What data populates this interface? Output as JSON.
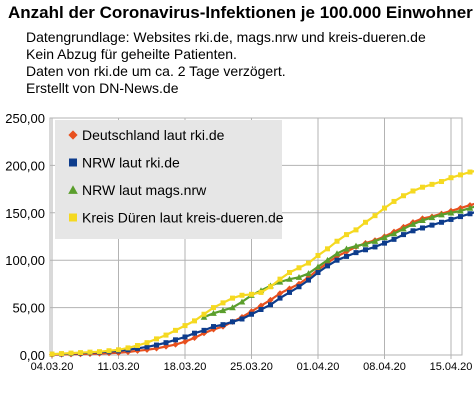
{
  "chart_data": {
    "type": "line",
    "title": "Anzahl der Coronavirus-Infektionen je 100.000 Einwohner",
    "subtitle_lines": [
      "Datengrundlage: Websites rki.de, mags.nrw und kreis-dueren.de",
      "Kein Abzug für geheilte Patienten.",
      "Daten von rki.de um ca. 2 Tage verzögert.",
      "Erstellt von DN-News.de"
    ],
    "x_tick_labels": [
      "04.03.20",
      "11.03.20",
      "18.03.20",
      "25.03.20",
      "01.04.20",
      "08.04.20",
      "15.04.20"
    ],
    "y_tick_labels": [
      "0,00",
      "50,00",
      "100,00",
      "150,00",
      "200,00",
      "250,00"
    ],
    "x_start": "2020-03-04",
    "x_end": "2020-04-20",
    "ylim": [
      0,
      250
    ],
    "grid": true,
    "legend_position": "top-left",
    "series": [
      {
        "name": "Deutschland laut rki.de",
        "color": "#e8501e",
        "marker": "diamond",
        "x": [
          "2020-03-04",
          "2020-03-05",
          "2020-03-06",
          "2020-03-07",
          "2020-03-08",
          "2020-03-09",
          "2020-03-10",
          "2020-03-11",
          "2020-03-12",
          "2020-03-13",
          "2020-03-14",
          "2020-03-15",
          "2020-03-16",
          "2020-03-17",
          "2020-03-18",
          "2020-03-19",
          "2020-03-20",
          "2020-03-21",
          "2020-03-22",
          "2020-03-23",
          "2020-03-24",
          "2020-03-25",
          "2020-03-26",
          "2020-03-27",
          "2020-03-28",
          "2020-03-29",
          "2020-03-30",
          "2020-03-31",
          "2020-04-01",
          "2020-04-02",
          "2020-04-03",
          "2020-04-04",
          "2020-04-05",
          "2020-04-06",
          "2020-04-07",
          "2020-04-08",
          "2020-04-09",
          "2020-04-10",
          "2020-04-11",
          "2020-04-12",
          "2020-04-13",
          "2020-04-14",
          "2020-04-15",
          "2020-04-16",
          "2020-04-17",
          "2020-04-18",
          "2020-04-19",
          "2020-04-20"
        ],
        "values": [
          0.3,
          0.5,
          0.7,
          0.9,
          1.2,
          1.5,
          1.9,
          2.3,
          3.2,
          4.4,
          5.5,
          7.0,
          9.0,
          11.0,
          14.0,
          18.0,
          23.0,
          27.0,
          30.0,
          35.0,
          40.0,
          46.0,
          52.0,
          58.0,
          65.0,
          70.0,
          75.0,
          82.0,
          90.0,
          97.0,
          104.0,
          109.0,
          114.0,
          118.0,
          121.0,
          125.0,
          130.0,
          135.0,
          140.0,
          144.0,
          146.0,
          149.0,
          152.0,
          155.0,
          158.0,
          161.0,
          165.0,
          168.0
        ]
      },
      {
        "name": "NRW laut rki.de",
        "color": "#0d3c8c",
        "marker": "square",
        "x": [
          "2020-03-04",
          "2020-03-05",
          "2020-03-06",
          "2020-03-07",
          "2020-03-08",
          "2020-03-09",
          "2020-03-10",
          "2020-03-11",
          "2020-03-12",
          "2020-03-13",
          "2020-03-14",
          "2020-03-15",
          "2020-03-16",
          "2020-03-17",
          "2020-03-18",
          "2020-03-19",
          "2020-03-20",
          "2020-03-21",
          "2020-03-22",
          "2020-03-23",
          "2020-03-24",
          "2020-03-25",
          "2020-03-26",
          "2020-03-27",
          "2020-03-28",
          "2020-03-29",
          "2020-03-30",
          "2020-03-31",
          "2020-04-01",
          "2020-04-02",
          "2020-04-03",
          "2020-04-04",
          "2020-04-05",
          "2020-04-06",
          "2020-04-07",
          "2020-04-08",
          "2020-04-09",
          "2020-04-10",
          "2020-04-11",
          "2020-04-12",
          "2020-04-13",
          "2020-04-14",
          "2020-04-15",
          "2020-04-16",
          "2020-04-17",
          "2020-04-18",
          "2020-04-19",
          "2020-04-20"
        ],
        "values": [
          0.8,
          1.1,
          1.5,
          1.9,
          2.4,
          2.9,
          3.5,
          4.3,
          5.5,
          7.0,
          8.5,
          10.5,
          13.0,
          16.0,
          19.0,
          23.0,
          26.0,
          30.0,
          32.0,
          35.0,
          38.0,
          43.0,
          48.0,
          53.0,
          60.0,
          66.0,
          72.0,
          79.0,
          87.0,
          94.0,
          100.0,
          104.0,
          108.0,
          111.0,
          114.0,
          118.0,
          122.0,
          127.0,
          131.0,
          134.0,
          137.0,
          140.0,
          143.0,
          146.0,
          149.0,
          152.0,
          155.0,
          158.0
        ]
      },
      {
        "name": "NRW laut mags.nrw",
        "color": "#5a9e2c",
        "marker": "triangle",
        "x": [
          "2020-03-20",
          "2020-03-21",
          "2020-03-22",
          "2020-03-23",
          "2020-03-24",
          "2020-03-25",
          "2020-03-26",
          "2020-03-27",
          "2020-03-28",
          "2020-03-29",
          "2020-03-30",
          "2020-03-31",
          "2020-04-01",
          "2020-04-02",
          "2020-04-03",
          "2020-04-04",
          "2020-04-05",
          "2020-04-06",
          "2020-04-07",
          "2020-04-08",
          "2020-04-09",
          "2020-04-10",
          "2020-04-11",
          "2020-04-12",
          "2020-04-13",
          "2020-04-14",
          "2020-04-15",
          "2020-04-16",
          "2020-04-17",
          "2020-04-18",
          "2020-04-19",
          "2020-04-20"
        ],
        "values": [
          40.0,
          44.0,
          47.0,
          50.0,
          56.0,
          63.0,
          68.0,
          73.0,
          77.0,
          80.0,
          82.0,
          86.0,
          93.0,
          100.0,
          107.0,
          112.0,
          115.0,
          117.0,
          120.0,
          124.0,
          128.0,
          133.0,
          138.0,
          142.0,
          145.0,
          148.0,
          150.0,
          152.0,
          155.0,
          158.0,
          161.0,
          163.0
        ]
      },
      {
        "name": "Kreis Düren laut kreis-dueren.de",
        "color": "#f5d921",
        "marker": "square",
        "x": [
          "2020-03-04",
          "2020-03-05",
          "2020-03-06",
          "2020-03-07",
          "2020-03-08",
          "2020-03-09",
          "2020-03-10",
          "2020-03-11",
          "2020-03-12",
          "2020-03-13",
          "2020-03-14",
          "2020-03-15",
          "2020-03-16",
          "2020-03-17",
          "2020-03-18",
          "2020-03-19",
          "2020-03-20",
          "2020-03-21",
          "2020-03-22",
          "2020-03-23",
          "2020-03-24",
          "2020-03-25",
          "2020-03-26",
          "2020-03-27",
          "2020-03-28",
          "2020-03-29",
          "2020-03-30",
          "2020-03-31",
          "2020-04-01",
          "2020-04-02",
          "2020-04-03",
          "2020-04-04",
          "2020-04-05",
          "2020-04-06",
          "2020-04-07",
          "2020-04-08",
          "2020-04-09",
          "2020-04-10",
          "2020-04-11",
          "2020-04-12",
          "2020-04-13",
          "2020-04-14",
          "2020-04-15",
          "2020-04-16",
          "2020-04-17",
          "2020-04-18",
          "2020-04-19",
          "2020-04-20"
        ],
        "values": [
          1.0,
          1.5,
          2.0,
          2.5,
          3.0,
          3.5,
          4.5,
          5.5,
          7.5,
          10.0,
          13.0,
          17.0,
          21.0,
          26.0,
          31.0,
          36.0,
          43.0,
          50.0,
          55.0,
          60.0,
          63.0,
          64.0,
          66.0,
          72.0,
          80.0,
          87.0,
          92.0,
          97.0,
          105.0,
          112.0,
          120.0,
          127.0,
          132.0,
          140.0,
          147.0,
          155.0,
          162.0,
          168.0,
          173.0,
          177.0,
          180.0,
          183.0,
          187.0,
          190.0,
          193.0,
          195.0,
          196.0,
          198.0
        ]
      }
    ]
  }
}
